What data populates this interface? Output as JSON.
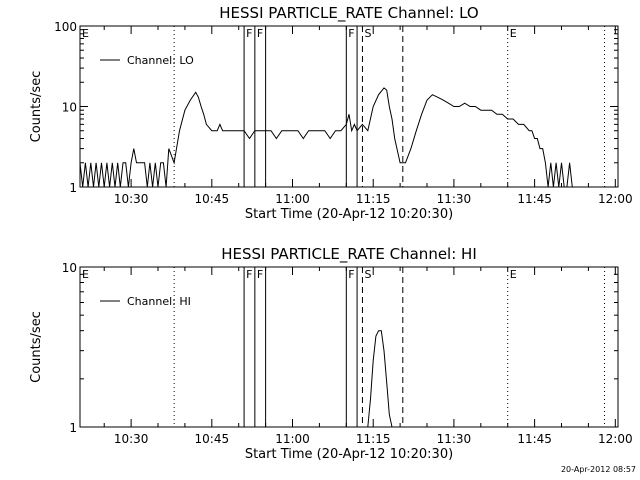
{
  "footer": {
    "timestamp": "20-Apr-2012 08:57"
  },
  "chart_data": [
    {
      "type": "line",
      "title": "HESSI PARTICLE_RATE Channel: LO",
      "xlabel": "Start Time (20-Apr-12 10:20:30)",
      "ylabel": "Counts/sec",
      "yscale": "log",
      "ylim": [
        1,
        100
      ],
      "xlim": [
        "10:20:30",
        "12:00:30"
      ],
      "xticks": [
        "10:30",
        "10:45",
        "11:00",
        "11:15",
        "11:30",
        "11:45",
        "12:00"
      ],
      "yticks": [
        "1",
        "10",
        "100"
      ],
      "legend": {
        "position": "top-left",
        "entries": [
          "Channel: LO"
        ]
      },
      "grid": false,
      "series": [
        {
          "name": "Channel: LO",
          "x": [
            "10:20:30",
            "10:21:00",
            "10:21:30",
            "10:22:00",
            "10:22:30",
            "10:23:00",
            "10:23:30",
            "10:24:00",
            "10:24:30",
            "10:25:00",
            "10:25:30",
            "10:26:00",
            "10:26:30",
            "10:27:00",
            "10:27:30",
            "10:28:00",
            "10:28:30",
            "10:29:00",
            "10:29:30",
            "10:30:00",
            "10:30:30",
            "10:31:00",
            "10:31:30",
            "10:32:00",
            "10:32:30",
            "10:33:00",
            "10:33:30",
            "10:34:00",
            "10:34:30",
            "10:35:00",
            "10:35:30",
            "10:36:00",
            "10:36:30",
            "10:37:00",
            "10:38:00",
            "10:39:00",
            "10:40:00",
            "10:41:00",
            "10:42:00",
            "10:42:30",
            "10:43:00",
            "10:43:30",
            "10:44:00",
            "10:45:00",
            "10:46:00",
            "10:46:30",
            "10:47:00",
            "10:48:00",
            "10:49:00",
            "10:50:00",
            "10:51:00",
            "10:52:00",
            "10:53:00",
            "10:54:00",
            "10:55:00",
            "10:56:00",
            "10:57:00",
            "10:58:00",
            "10:59:00",
            "11:00:00",
            "11:01:00",
            "11:02:00",
            "11:03:00",
            "11:04:00",
            "11:05:00",
            "11:06:00",
            "11:07:00",
            "11:08:00",
            "11:09:00",
            "11:10:00",
            "11:10:30",
            "11:11:00",
            "11:11:30",
            "11:12:00",
            "11:13:00",
            "11:14:00",
            "11:15:00",
            "11:16:00",
            "11:17:00",
            "11:17:30",
            "11:18:00",
            "11:18:30",
            "11:19:00",
            "11:20:00",
            "11:21:00",
            "11:22:00",
            "11:23:00",
            "11:24:00",
            "11:25:00",
            "11:26:00",
            "11:27:00",
            "11:28:00",
            "11:29:00",
            "11:30:00",
            "11:31:00",
            "11:32:00",
            "11:33:00",
            "11:34:00",
            "11:35:00",
            "11:36:00",
            "11:37:00",
            "11:38:00",
            "11:39:00",
            "11:40:00",
            "11:41:00",
            "11:42:00",
            "11:43:00",
            "11:44:00",
            "11:44:30",
            "11:45:00",
            "11:45:30",
            "11:46:00",
            "11:46:30",
            "11:47:00",
            "11:47:30",
            "11:48:00",
            "11:48:30",
            "11:49:00",
            "11:49:30",
            "11:50:00",
            "11:50:30",
            "11:51:00",
            "11:51:30",
            "11:52:00",
            "11:53:00",
            "11:54:00",
            "11:55:00",
            "11:56:00",
            "11:57:00",
            "11:58:00",
            "11:59:00",
            "12:00:00"
          ],
          "y": [
            2,
            1,
            2,
            1,
            2,
            1,
            2,
            1,
            2,
            1,
            2,
            1,
            2,
            1,
            2,
            1,
            2,
            2,
            1,
            2,
            3,
            2,
            2,
            2,
            2,
            1,
            2,
            1,
            2,
            1,
            2,
            2,
            1,
            3,
            2,
            5,
            9,
            12,
            15,
            13,
            10,
            8,
            6,
            5,
            5,
            6,
            5,
            5,
            5,
            5,
            5,
            4,
            5,
            5,
            5,
            5,
            4,
            5,
            5,
            5,
            5,
            4,
            5,
            5,
            5,
            5,
            4,
            5,
            5,
            6,
            8,
            5,
            6,
            5,
            6,
            5,
            10,
            14,
            17,
            16,
            10,
            7,
            4,
            2,
            2,
            3,
            5,
            8,
            12,
            14,
            13,
            12,
            11,
            10,
            10,
            11,
            10,
            10,
            9,
            9,
            9,
            8,
            8,
            7,
            7,
            6,
            6,
            5,
            5,
            4,
            4,
            3,
            3,
            2,
            1,
            2,
            1,
            2,
            1,
            2,
            1,
            1,
            2,
            1,
            1,
            1,
            1,
            1,
            1,
            1,
            1,
            1
          ]
        }
      ],
      "annotations": [
        {
          "label": "E",
          "time": "10:20:30",
          "style": "none"
        },
        {
          "label": "",
          "time": "10:38:00",
          "style": "dotted"
        },
        {
          "label": "F",
          "time": "10:51:00",
          "style": "solid"
        },
        {
          "label": "F",
          "time": "10:53:00",
          "style": "solid"
        },
        {
          "label": "",
          "time": "10:55:00",
          "style": "solid"
        },
        {
          "label": "F",
          "time": "11:10:00",
          "style": "solid"
        },
        {
          "label": "",
          "time": "11:12:00",
          "style": "solid"
        },
        {
          "label": "S",
          "time": "11:13:00",
          "style": "dashed"
        },
        {
          "label": "",
          "time": "11:20:30",
          "style": "dashed"
        },
        {
          "label": "E",
          "time": "11:40:00",
          "style": "dotted"
        },
        {
          "label": "",
          "time": "11:58:00",
          "style": "dotted"
        }
      ]
    },
    {
      "type": "line",
      "title": "HESSI PARTICLE_RATE Channel: HI",
      "xlabel": "Start Time (20-Apr-12 10:20:30)",
      "ylabel": "Counts/sec",
      "yscale": "log",
      "ylim": [
        1,
        10
      ],
      "xlim": [
        "10:20:30",
        "12:00:30"
      ],
      "xticks": [
        "10:30",
        "10:45",
        "11:00",
        "11:15",
        "11:30",
        "11:45",
        "12:00"
      ],
      "yticks": [
        "1",
        "10"
      ],
      "legend": {
        "position": "top-left",
        "entries": [
          "Channel: HI"
        ]
      },
      "grid": false,
      "series": [
        {
          "name": "Channel: HI",
          "x": [
            "11:14:00",
            "11:14:30",
            "11:15:00",
            "11:15:30",
            "11:16:00",
            "11:16:30",
            "11:17:00",
            "11:17:30",
            "11:18:00",
            "11:18:30"
          ],
          "y": [
            1,
            1.5,
            2.6,
            3.7,
            4.0,
            4.0,
            3.0,
            1.9,
            1.2,
            1
          ]
        }
      ],
      "annotations": [
        {
          "label": "E",
          "time": "10:20:30",
          "style": "none"
        },
        {
          "label": "",
          "time": "10:38:00",
          "style": "dotted"
        },
        {
          "label": "F",
          "time": "10:51:00",
          "style": "solid"
        },
        {
          "label": "F",
          "time": "10:53:00",
          "style": "solid"
        },
        {
          "label": "",
          "time": "10:55:00",
          "style": "solid"
        },
        {
          "label": "F",
          "time": "11:10:00",
          "style": "solid"
        },
        {
          "label": "",
          "time": "11:12:00",
          "style": "solid"
        },
        {
          "label": "S",
          "time": "11:13:00",
          "style": "dashed"
        },
        {
          "label": "",
          "time": "11:20:30",
          "style": "dashed"
        },
        {
          "label": "E",
          "time": "11:40:00",
          "style": "dotted"
        },
        {
          "label": "",
          "time": "11:58:00",
          "style": "dotted"
        }
      ]
    }
  ]
}
